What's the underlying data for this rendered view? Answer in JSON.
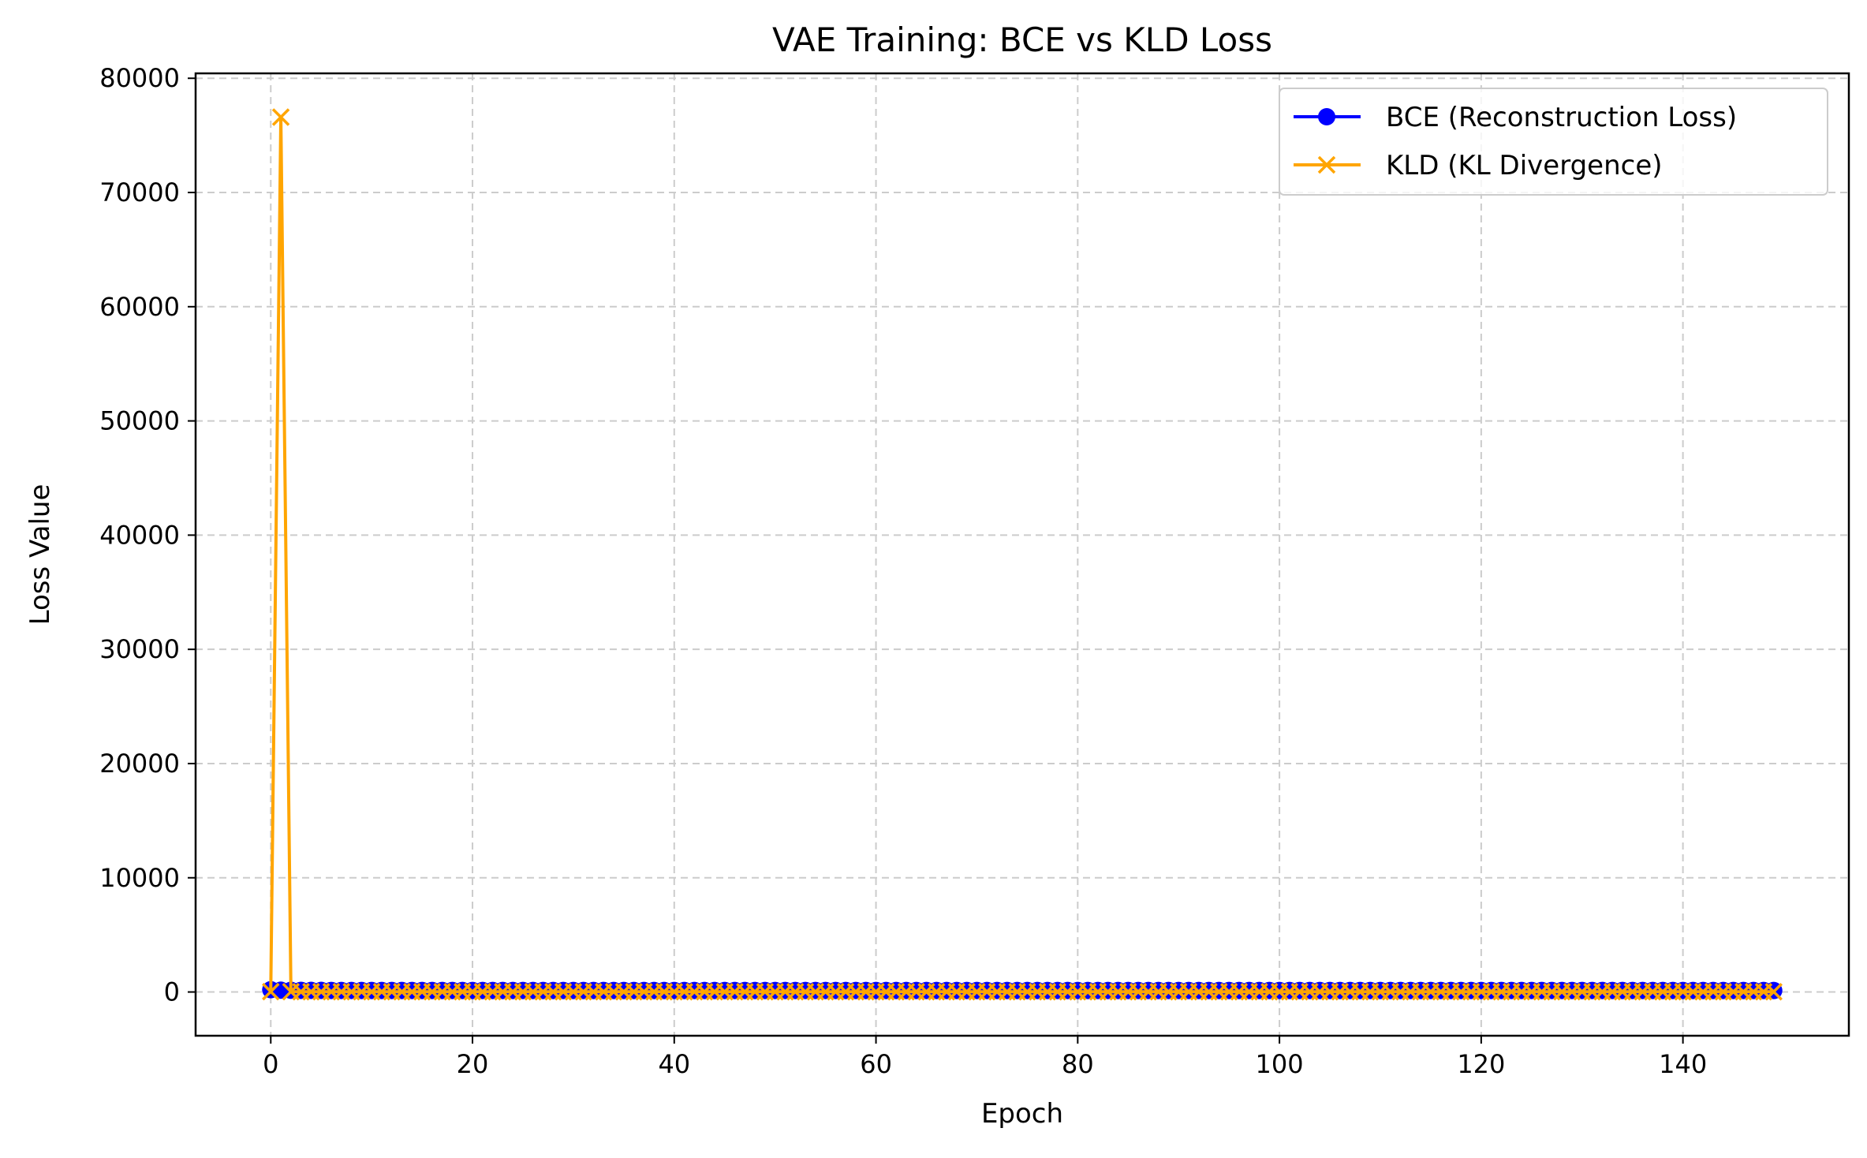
{
  "chart_data": {
    "type": "line",
    "title": "VAE Training: BCE vs KLD Loss",
    "xlabel": "Epoch",
    "ylabel": "Loss Value",
    "xlim": [
      -7.45,
      156.45
    ],
    "ylim": [
      -3830,
      80430
    ],
    "xticks": [
      0,
      20,
      40,
      60,
      80,
      100,
      120,
      140
    ],
    "yticks": [
      0,
      10000,
      20000,
      30000,
      40000,
      50000,
      60000,
      70000,
      80000
    ],
    "grid": true,
    "legend_position": "upper right",
    "epochs": 150,
    "series": [
      {
        "name": "BCE (Reconstruction Loss)",
        "color": "#0000ff",
        "marker": "o",
        "values": [
          200,
          160,
          150,
          145,
          140,
          138,
          135,
          133,
          131,
          130
        ]
      },
      {
        "name": "KLD (KL Divergence)",
        "color": "#ffa500",
        "marker": "x",
        "values": [
          30,
          76600,
          25,
          22,
          20,
          19,
          18,
          18,
          17,
          17
        ]
      }
    ]
  }
}
